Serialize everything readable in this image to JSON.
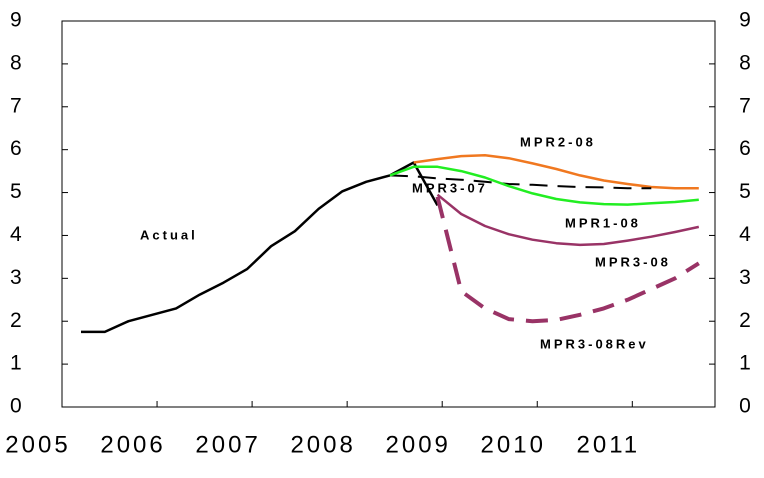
{
  "chart_data": {
    "type": "line",
    "x": [
      2005.2,
      2005.45,
      2005.7,
      2005.95,
      2006.2,
      2006.45,
      2006.7,
      2006.95,
      2007.2,
      2007.45,
      2007.7,
      2007.95,
      2008.2,
      2008.45,
      2008.7,
      2008.95,
      2009.2,
      2009.45,
      2009.7,
      2009.95,
      2010.2,
      2010.45,
      2010.7,
      2010.95,
      2011.2,
      2011.45,
      2011.7
    ],
    "series": [
      {
        "name": "Actual",
        "color": "#000000",
        "dash": false,
        "width": 2.5,
        "values": [
          1.75,
          1.75,
          2.0,
          2.15,
          2.3,
          2.62,
          2.9,
          3.22,
          3.75,
          4.1,
          4.62,
          5.03,
          5.25,
          5.4,
          5.7,
          4.7,
          null,
          null,
          null,
          null,
          null,
          null,
          null,
          null,
          null,
          null,
          null
        ]
      },
      {
        "name": "MPR2-08",
        "color": "#f07820",
        "dash": false,
        "width": 2.5,
        "values": [
          null,
          null,
          null,
          null,
          null,
          null,
          null,
          null,
          null,
          null,
          null,
          null,
          null,
          null,
          5.7,
          5.78,
          5.85,
          5.87,
          5.8,
          5.68,
          5.55,
          5.4,
          5.28,
          5.2,
          5.13,
          5.1,
          5.1
        ]
      },
      {
        "name": "MPR3-07",
        "color": "#000000",
        "dash": true,
        "width": 2,
        "values": [
          null,
          null,
          null,
          null,
          null,
          null,
          null,
          null,
          null,
          null,
          null,
          null,
          null,
          5.4,
          5.38,
          5.33,
          5.3,
          5.25,
          5.2,
          5.18,
          5.15,
          5.13,
          5.12,
          5.1,
          5.1,
          null,
          null
        ]
      },
      {
        "name": "MPR1-08",
        "color": "#22ee22",
        "dash": false,
        "width": 2.5,
        "values": [
          null,
          null,
          null,
          null,
          null,
          null,
          null,
          null,
          null,
          null,
          null,
          null,
          null,
          5.4,
          5.6,
          5.6,
          5.5,
          5.35,
          5.15,
          4.98,
          4.85,
          4.77,
          4.73,
          4.72,
          4.75,
          4.78,
          4.83
        ]
      },
      {
        "name": "MPR3-08",
        "color": "#993366",
        "dash": false,
        "width": 2.5,
        "values": [
          null,
          null,
          null,
          null,
          null,
          null,
          null,
          null,
          null,
          null,
          null,
          null,
          null,
          null,
          null,
          4.95,
          4.5,
          4.22,
          4.03,
          3.9,
          3.82,
          3.78,
          3.8,
          3.88,
          3.97,
          4.08,
          4.2
        ]
      },
      {
        "name": "MPR3-08Rev",
        "color": "#993366",
        "dash": true,
        "width": 4,
        "values": [
          null,
          null,
          null,
          null,
          null,
          null,
          null,
          null,
          null,
          null,
          null,
          null,
          null,
          null,
          null,
          4.9,
          2.7,
          2.3,
          2.05,
          2.0,
          2.03,
          2.15,
          2.3,
          2.5,
          2.75,
          3.0,
          3.35
        ]
      }
    ],
    "xlim": [
      2005,
      2011.87
    ],
    "xticks": [
      2005,
      2006,
      2007,
      2008,
      2009,
      2010,
      2011
    ],
    "ylim": [
      0,
      9
    ],
    "yticks": [
      0,
      1,
      2,
      3,
      4,
      5,
      6,
      7,
      8,
      9
    ],
    "y2lim": [
      0,
      9
    ],
    "y2ticks": [
      0,
      1,
      2,
      3,
      4,
      5,
      6,
      7,
      8,
      9
    ]
  }
}
